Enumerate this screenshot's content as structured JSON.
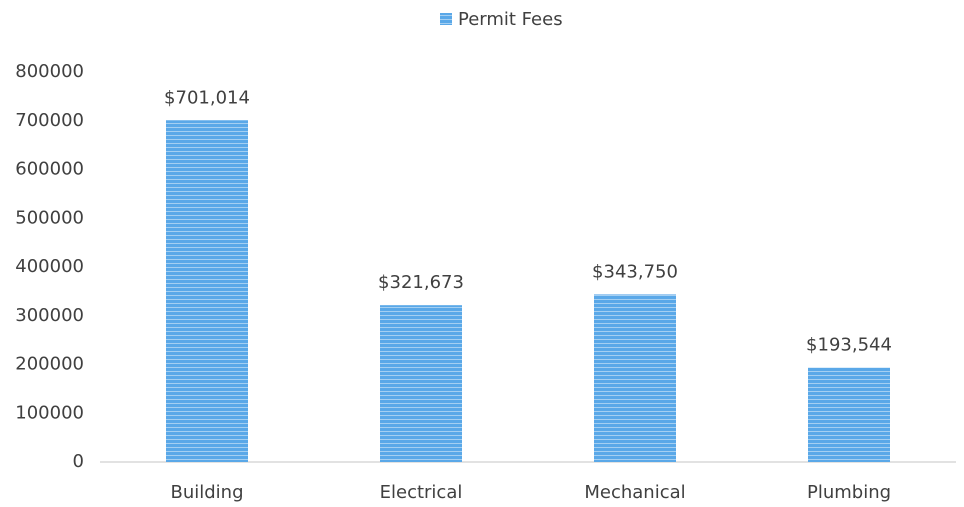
{
  "chart_data": {
    "type": "bar",
    "categories": [
      "Building",
      "Electrical",
      "Mechanical",
      "Plumbing"
    ],
    "series": [
      {
        "name": "Permit Fees",
        "color": "#5aa8e8",
        "values": [
          701014,
          321673,
          343750,
          193544
        ],
        "value_labels": [
          "$701,014",
          "$321,673",
          "$343,750",
          "$193,544"
        ]
      }
    ],
    "ylim": [
      0,
      800000
    ],
    "yticks": [
      0,
      100000,
      200000,
      300000,
      400000,
      500000,
      600000,
      700000,
      800000
    ],
    "grid": false,
    "legend": "top"
  }
}
